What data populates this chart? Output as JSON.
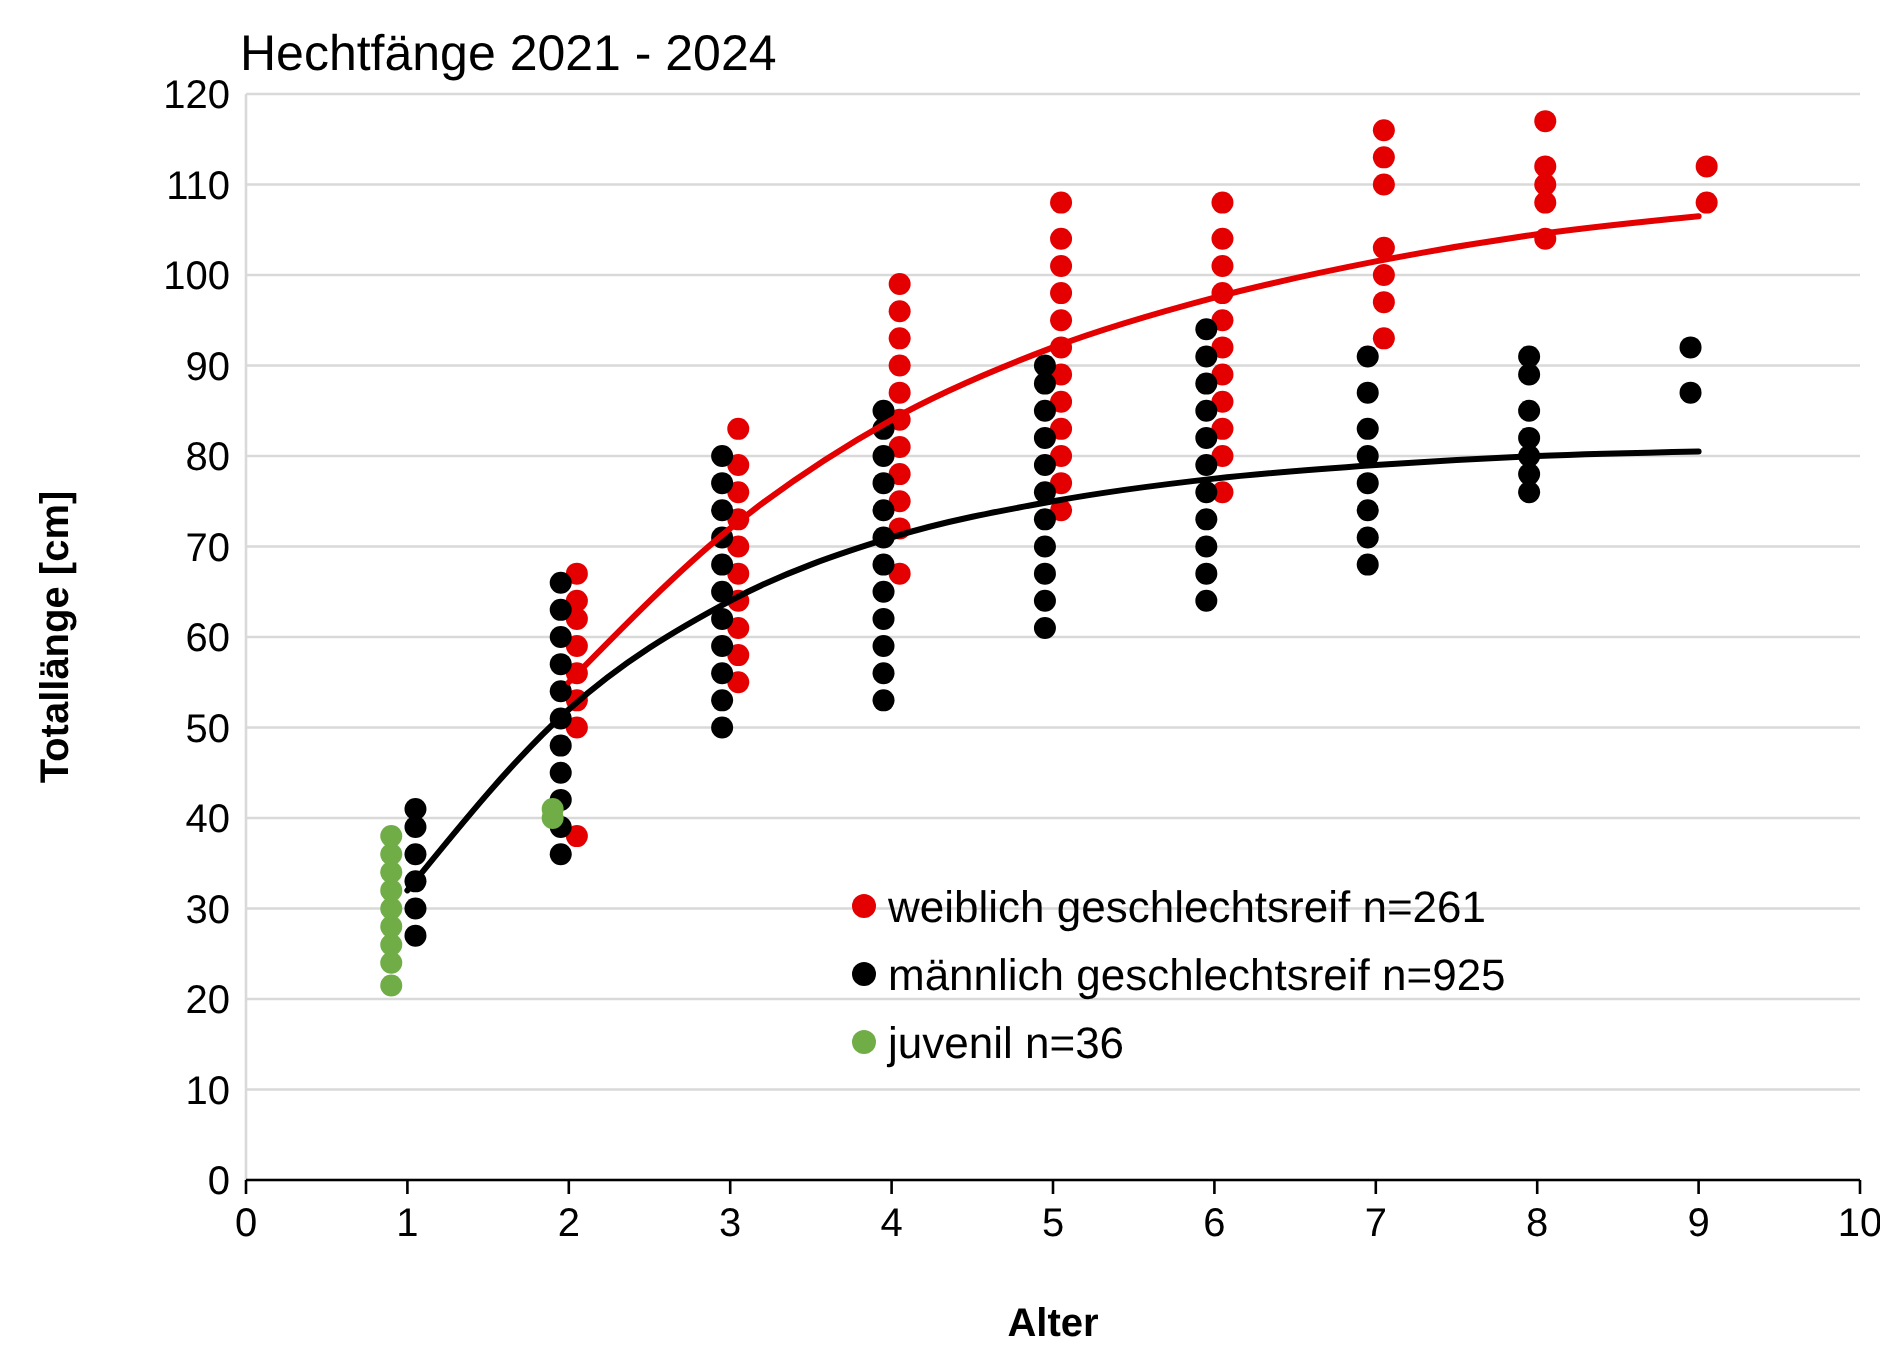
{
  "chart_data": {
    "type": "scatter",
    "title": "Hechtfänge 2021 - 2024",
    "xlabel": "Alter",
    "ylabel": "Totallänge [cm]",
    "xlim": [
      0,
      10
    ],
    "xticks": [
      0,
      1,
      2,
      3,
      4,
      5,
      6,
      7,
      8,
      9,
      10
    ],
    "ylim": [
      0,
      120
    ],
    "yticks": [
      0,
      10,
      20,
      30,
      40,
      50,
      60,
      70,
      80,
      90,
      100,
      110,
      120
    ],
    "grid": "y",
    "legend": "bottom right",
    "marker": "circle",
    "series": [
      {
        "name": "weiblich geschlechtsreif n=261",
        "color": "#e40000",
        "x": [
          2.05,
          2.05,
          2.05,
          2.05,
          2.05,
          2.05,
          2.05,
          2.05,
          3.05,
          3.05,
          3.05,
          3.05,
          3.05,
          3.05,
          3.05,
          3.05,
          3.05,
          3.05,
          4.05,
          4.05,
          4.05,
          4.05,
          4.05,
          4.05,
          4.05,
          4.05,
          4.05,
          4.05,
          4.05,
          5.05,
          5.05,
          5.05,
          5.05,
          5.05,
          5.05,
          5.05,
          5.05,
          5.05,
          5.05,
          5.05,
          5.05,
          6.05,
          6.05,
          6.05,
          6.05,
          6.05,
          6.05,
          6.05,
          6.05,
          6.05,
          6.05,
          6.05,
          7.05,
          7.05,
          7.05,
          7.05,
          7.05,
          7.05,
          7.05,
          8.05,
          8.05,
          8.05,
          8.05,
          8.05,
          9.05,
          9.05
        ],
        "values": [
          38,
          50,
          53,
          56,
          59,
          62,
          64,
          67,
          55,
          58,
          61,
          64,
          67,
          70,
          73,
          76,
          79,
          83,
          67,
          72,
          75,
          78,
          81,
          84,
          87,
          90,
          93,
          96,
          99,
          74,
          77,
          80,
          83,
          86,
          89,
          92,
          95,
          98,
          101,
          104,
          108,
          76,
          80,
          83,
          86,
          89,
          92,
          95,
          98,
          101,
          104,
          108,
          93,
          97,
          100,
          103,
          110,
          113,
          116,
          104,
          108,
          110,
          112,
          117,
          108,
          112
        ]
      },
      {
        "name": "männlich geschlechtsreif n=925",
        "color": "#000000",
        "x": [
          1.05,
          1.05,
          1.05,
          1.05,
          1.05,
          1.05,
          1.95,
          1.95,
          1.95,
          1.95,
          1.95,
          1.95,
          1.95,
          1.95,
          1.95,
          1.95,
          1.95,
          2.95,
          2.95,
          2.95,
          2.95,
          2.95,
          2.95,
          2.95,
          2.95,
          2.95,
          2.95,
          2.95,
          3.95,
          3.95,
          3.95,
          3.95,
          3.95,
          3.95,
          3.95,
          3.95,
          3.95,
          3.95,
          3.95,
          3.95,
          4.95,
          4.95,
          4.95,
          4.95,
          4.95,
          4.95,
          4.95,
          4.95,
          4.95,
          4.95,
          4.95,
          5.95,
          5.95,
          5.95,
          5.95,
          5.95,
          5.95,
          5.95,
          5.95,
          5.95,
          5.95,
          5.95,
          6.95,
          6.95,
          6.95,
          6.95,
          6.95,
          6.95,
          6.95,
          6.95,
          7.95,
          7.95,
          7.95,
          7.95,
          7.95,
          7.95,
          7.95,
          8.95,
          8.95
        ],
        "values": [
          27,
          30,
          33,
          36,
          39,
          41,
          36,
          39,
          42,
          45,
          48,
          51,
          54,
          57,
          60,
          63,
          66,
          50,
          53,
          56,
          59,
          62,
          65,
          68,
          71,
          74,
          77,
          80,
          53,
          56,
          59,
          62,
          65,
          68,
          71,
          74,
          77,
          80,
          83,
          85,
          61,
          64,
          67,
          70,
          73,
          76,
          79,
          82,
          85,
          88,
          90,
          64,
          67,
          70,
          73,
          76,
          79,
          82,
          85,
          88,
          91,
          94,
          68,
          71,
          74,
          77,
          80,
          83,
          87,
          91,
          76,
          78,
          80,
          82,
          85,
          89,
          91,
          87,
          92
        ]
      },
      {
        "name": "juvenil n=36",
        "color": "#70ad47",
        "x": [
          0.9,
          0.9,
          0.9,
          0.9,
          0.9,
          0.9,
          0.9,
          0.9,
          0.9,
          1.9,
          1.9
        ],
        "values": [
          21.5,
          24,
          26,
          28,
          30,
          32,
          34,
          36,
          38,
          40,
          41
        ]
      },
      {
        "color": "#e40000",
        "type": "line",
        "marker": "none",
        "x": [
          2,
          3,
          4,
          5,
          6,
          7,
          8,
          9
        ],
        "values": [
          55,
          72,
          84,
          92,
          97.5,
          101.5,
          104.5,
          106.5
        ]
      },
      {
        "color": "#000000",
        "type": "line",
        "marker": "none",
        "x": [
          1,
          2,
          3,
          4,
          5,
          6,
          7,
          8,
          9
        ],
        "values": [
          32,
          52,
          64,
          71,
          75,
          77.5,
          79,
          80,
          80.5
        ]
      }
    ]
  }
}
